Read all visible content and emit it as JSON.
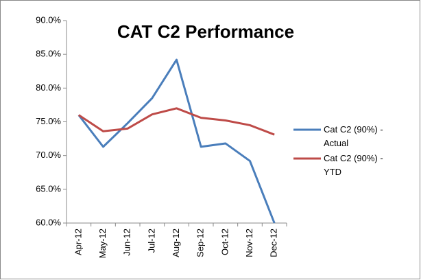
{
  "chart_data": {
    "type": "line",
    "title": "CAT C2 Performance",
    "categories": [
      "Apr-12",
      "May-12",
      "Jun-12",
      "Jul-12",
      "Aug-12",
      "Sep-12",
      "Oct-12",
      "Nov-12",
      "Dec-12"
    ],
    "series": [
      {
        "name": "Cat C2 (90%) - Actual",
        "color": "#4a7ebb",
        "values": [
          76.0,
          71.3,
          74.8,
          78.5,
          84.2,
          71.3,
          71.8,
          69.2,
          60.0
        ]
      },
      {
        "name": "Cat C2 (90%) - YTD",
        "color": "#be4b48",
        "values": [
          76.0,
          73.6,
          74.0,
          76.1,
          77.0,
          75.6,
          75.2,
          74.5,
          73.1
        ]
      }
    ],
    "ylim": [
      60,
      90
    ],
    "yticks": [
      {
        "value": 60,
        "label": "60.0%"
      },
      {
        "value": 65,
        "label": "65.0%"
      },
      {
        "value": 70,
        "label": "70.0%"
      },
      {
        "value": 75,
        "label": "75.0%"
      },
      {
        "value": 80,
        "label": "80.0%"
      },
      {
        "value": 85,
        "label": "85.0%"
      },
      {
        "value": 90,
        "label": "90.0%"
      }
    ],
    "grid": false,
    "legend": "right"
  }
}
